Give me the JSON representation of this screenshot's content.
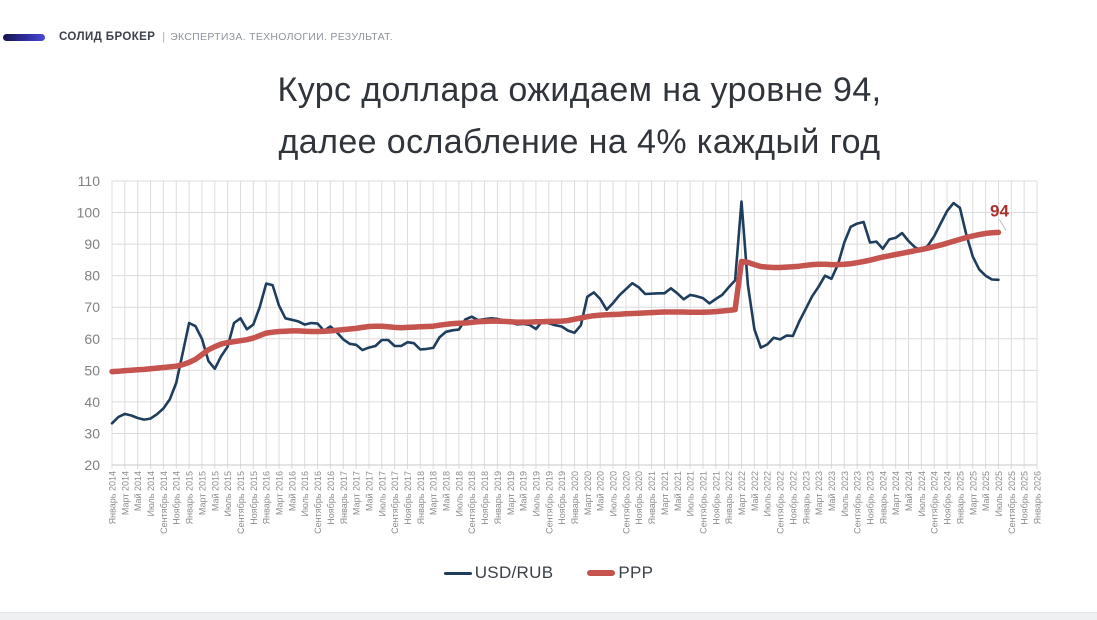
{
  "header": {
    "brand": "СОЛИД БРОКЕР",
    "separator": "|",
    "tagline": "ЭКСПЕРТИЗА. ТЕХНОЛОГИИ. РЕЗУЛЬТАТ."
  },
  "title": {
    "line1": "Курс доллара ожидаем на уровне 94,",
    "line2": "далее ослабление на 4% каждый год"
  },
  "chart_data": {
    "type": "line",
    "title": "",
    "xlabel": "",
    "ylabel": "",
    "ylim": [
      20,
      110
    ],
    "y_tick_labels": [
      "110",
      "100",
      "90",
      "80",
      "70",
      "60",
      "50",
      "40",
      "30",
      "20"
    ],
    "grid": true,
    "legend_position": "bottom",
    "x_start_label": "Январь 2014",
    "x_end_label": "Январь 2026",
    "x_step_months": 1,
    "x_months_total": 144,
    "x_tick_labels": [
      "Январь 2014",
      "Март 2014",
      "Май 2014",
      "Июль 2014",
      "Сентябрь 2014",
      "Ноябрь 2014",
      "Январь 2015",
      "Март 2015",
      "Май 2015",
      "Июль 2015",
      "Сентябрь 2015",
      "Ноябрь 2015",
      "Январь 2016",
      "Март 2016",
      "Май 2016",
      "Июль 2016",
      "Сентябрь 2016",
      "Ноябрь 2016",
      "Январь 2017",
      "Март 2017",
      "Май 2017",
      "Июль 2017",
      "Сентябрь 2017",
      "Ноябрь 2017",
      "Январь 2018",
      "Март 2018",
      "Май 2018",
      "Июль 2018",
      "Сентябрь 2018",
      "Ноябрь 2018",
      "Январь 2019",
      "Март 2019",
      "Май 2019",
      "Июль 2019",
      "Сентябрь 2019",
      "Ноябрь 2019",
      "Январь 2020",
      "Март 2020",
      "Май 2020",
      "Июль 2020",
      "Сентябрь 2020",
      "Ноябрь 2020",
      "Январь 2021",
      "Март 2021",
      "Май 2021",
      "Июль 2021",
      "Сентябрь 2021",
      "Ноябрь 2021",
      "Январь 2022",
      "Март 2022",
      "Май 2022",
      "Июль 2022",
      "Сентябрь 2022",
      "Ноябрь 2022",
      "Январь 2023",
      "Март 2023",
      "Май 2023",
      "Июль 2023",
      "Сентябрь 2023",
      "Ноябрь 2023",
      "Январь 2024",
      "Март 2024",
      "Май 2024",
      "Июль 2024",
      "Сентябрь 2024",
      "Ноябрь 2024",
      "Январь 2025",
      "Март 2025",
      "Май 2025",
      "Июль 2025",
      "Сентябрь 2025",
      "Ноябрь 2025",
      "Январь 2026"
    ],
    "series": [
      {
        "name": "USD/RUB",
        "color": "#1f3d5c",
        "stroke_width": 2.6,
        "values": [
          33.2,
          35.2,
          36.2,
          35.7,
          34.9,
          34.4,
          34.7,
          36.1,
          37.9,
          40.8,
          46.0,
          55.5,
          65.0,
          64.0,
          60.0,
          53.0,
          50.5,
          54.5,
          57.5,
          65.0,
          66.5,
          63.0,
          64.5,
          70.0,
          77.5,
          77.0,
          70.5,
          66.5,
          66.0,
          65.5,
          64.5,
          65.0,
          64.8,
          62.6,
          63.9,
          62.1,
          59.8,
          58.4,
          58.1,
          56.4,
          57.2,
          57.7,
          59.6,
          59.6,
          57.7,
          57.7,
          58.9,
          58.6,
          56.6,
          56.8,
          57.1,
          60.5,
          62.2,
          62.7,
          62.9,
          66.1,
          67.0,
          65.9,
          66.2,
          66.5,
          66.3,
          65.8,
          65.2,
          64.6,
          64.7,
          64.4,
          63.1,
          65.6,
          64.9,
          64.3,
          63.9,
          62.6,
          61.9,
          64.3,
          73.3,
          74.7,
          72.6,
          69.2,
          71.3,
          73.8,
          75.7,
          77.6,
          76.3,
          74.2,
          74.3,
          74.4,
          74.4,
          76.0,
          74.4,
          72.5,
          73.9,
          73.5,
          72.9,
          71.2,
          72.6,
          73.9,
          76.3,
          78.5,
          103.5,
          77.0,
          63.0,
          57.2,
          58.2,
          60.3,
          59.8,
          61.0,
          60.9,
          65.5,
          69.5,
          73.5,
          76.5,
          80.0,
          79.0,
          83.5,
          90.5,
          95.5,
          96.5,
          97.0,
          90.5,
          90.8,
          88.5,
          91.5,
          92.0,
          93.5,
          91.0,
          89.0,
          88.0,
          89.5,
          92.5,
          96.5,
          100.5,
          103.0,
          101.5,
          93.0,
          86.0,
          82.0,
          80.0,
          78.8,
          78.7
        ]
      },
      {
        "name": "PPP",
        "color": "#c5534e",
        "stroke_width": 5.5,
        "values": [
          49.6,
          49.7,
          49.9,
          50.0,
          50.2,
          50.3,
          50.5,
          50.7,
          50.9,
          51.1,
          51.3,
          51.8,
          52.5,
          53.5,
          55.0,
          56.5,
          57.5,
          58.3,
          58.8,
          59.1,
          59.4,
          59.7,
          60.2,
          61.0,
          61.8,
          62.1,
          62.3,
          62.4,
          62.5,
          62.5,
          62.4,
          62.3,
          62.3,
          62.4,
          62.5,
          62.7,
          62.9,
          63.1,
          63.3,
          63.6,
          63.9,
          64.0,
          64.0,
          63.8,
          63.6,
          63.5,
          63.6,
          63.7,
          63.8,
          63.9,
          64.0,
          64.3,
          64.6,
          64.8,
          64.9,
          65.0,
          65.2,
          65.4,
          65.5,
          65.6,
          65.6,
          65.5,
          65.4,
          65.3,
          65.3,
          65.3,
          65.4,
          65.4,
          65.5,
          65.5,
          65.6,
          65.8,
          66.2,
          66.6,
          67.0,
          67.3,
          67.5,
          67.6,
          67.7,
          67.8,
          67.9,
          68.0,
          68.1,
          68.2,
          68.3,
          68.4,
          68.5,
          68.5,
          68.5,
          68.5,
          68.4,
          68.4,
          68.4,
          68.5,
          68.6,
          68.8,
          69.0,
          69.2,
          84.5,
          84.2,
          83.5,
          82.9,
          82.7,
          82.6,
          82.6,
          82.7,
          82.8,
          83.0,
          83.3,
          83.5,
          83.6,
          83.6,
          83.5,
          83.5,
          83.6,
          83.8,
          84.1,
          84.5,
          84.9,
          85.4,
          85.9,
          86.3,
          86.7,
          87.1,
          87.5,
          87.9,
          88.3,
          88.7,
          89.2,
          89.7,
          90.3,
          90.9,
          91.5,
          92.1,
          92.6,
          93.0,
          93.4,
          93.6,
          93.7
        ]
      }
    ],
    "annotation": {
      "text": "94",
      "color": "#a8322e"
    },
    "colors": {
      "grid": "#dcdcdc",
      "axis_labels": "#808080",
      "x_tick_labels": "#8c8c8c"
    }
  },
  "legend": {
    "items": [
      {
        "label": "USD/RUB"
      },
      {
        "label": "PPP"
      }
    ]
  }
}
